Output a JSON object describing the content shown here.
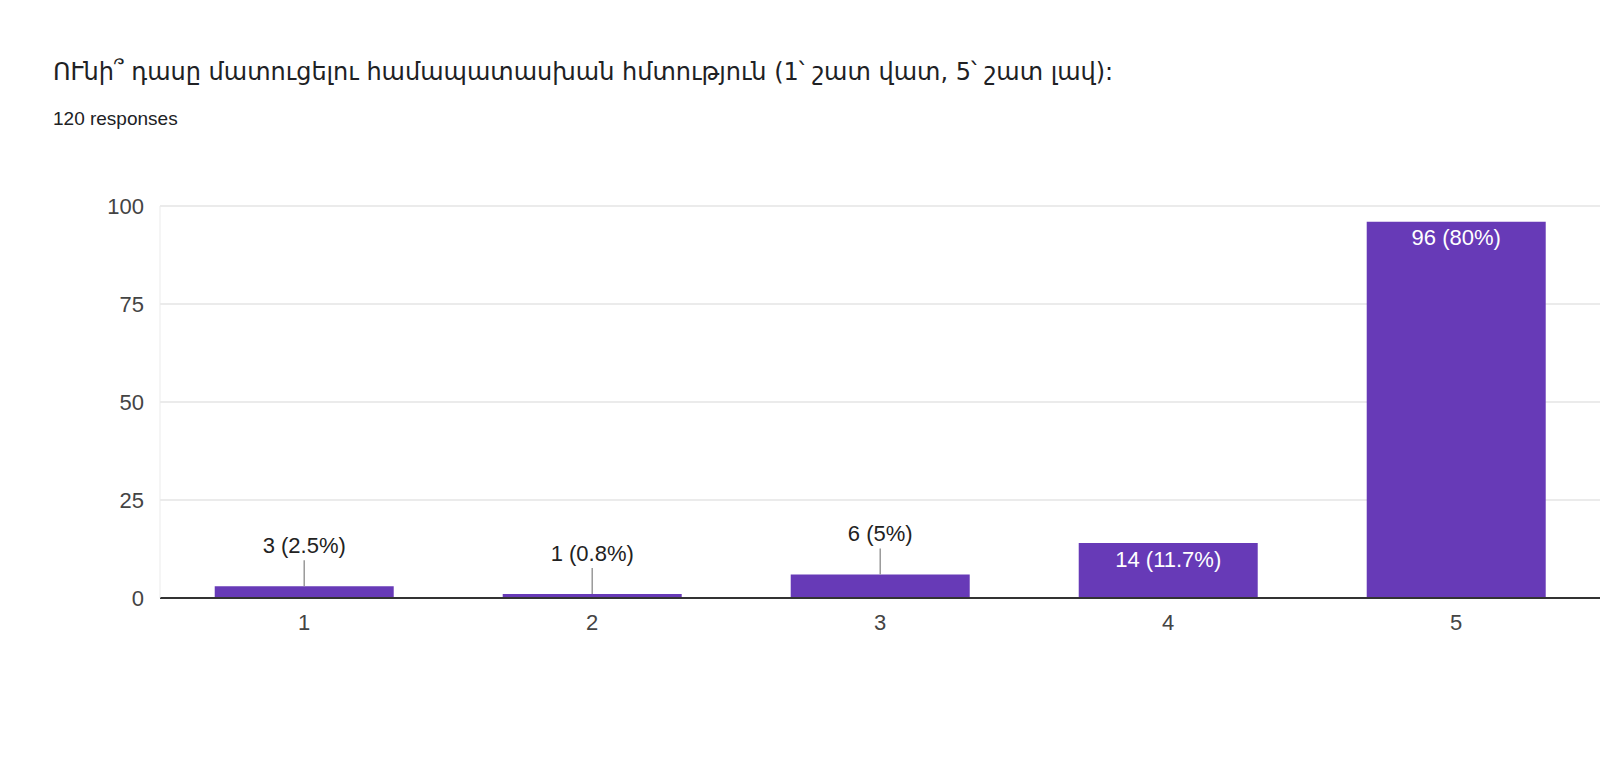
{
  "chart_data": {
    "type": "bar",
    "title": "ՈՒնի՞ դասը մատուցելու համապատասխան հմտություն  (1՝ շատ վատ, 5՝ շատ լավ):",
    "subtitle": "120 responses",
    "categories": [
      "1",
      "2",
      "3",
      "4",
      "5"
    ],
    "values": [
      3,
      1,
      6,
      14,
      96
    ],
    "value_labels": [
      "3 (2.5%)",
      "1 (0.8%)",
      "6 (5%)",
      "14 (11.7%)",
      "96 (80%)"
    ],
    "color": "#673ab7",
    "ylim": [
      0,
      100
    ],
    "yticks": [
      0,
      25,
      50,
      75,
      100
    ],
    "grid": true,
    "data_labels": true
  }
}
